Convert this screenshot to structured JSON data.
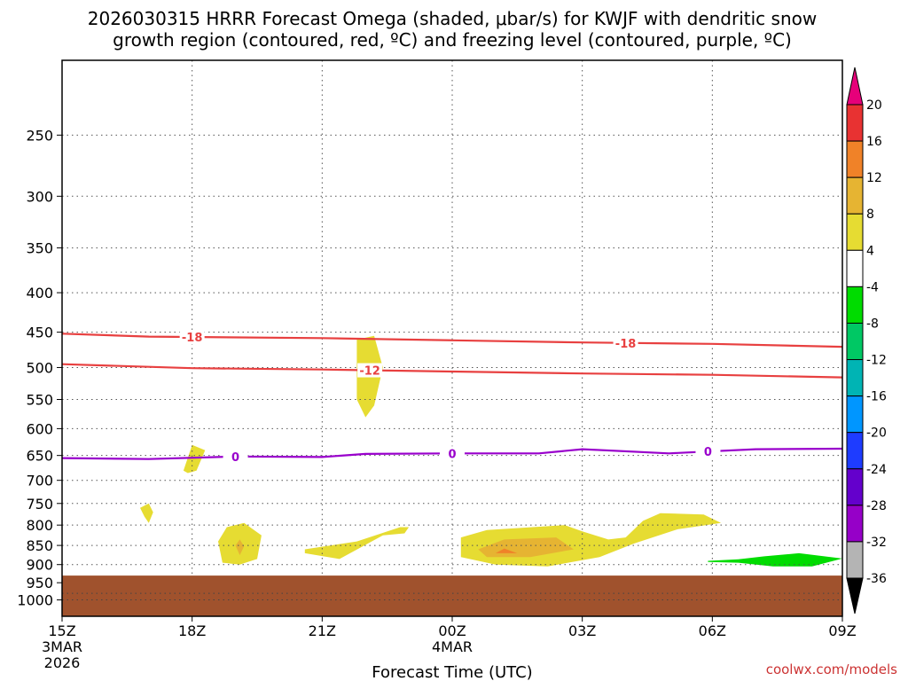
{
  "chart_data": {
    "type": "contour-time-height",
    "title_line1": "2026030315 HRRR Forecast Omega (shaded, μbar/s) for KWJF with dendritic snow",
    "title_line2": "growth region (contoured, red, ºC) and freezing level (contoured, purple, ºC)",
    "xlabel": "Forecast Time (UTC)",
    "credit": "coolwx.com/models",
    "x_range_hours": [
      0,
      18
    ],
    "x_ticks": [
      {
        "h": 0,
        "label": "15Z",
        "sub1": "3MAR",
        "sub2": "2026"
      },
      {
        "h": 3,
        "label": "18Z",
        "sub1": "",
        "sub2": ""
      },
      {
        "h": 6,
        "label": "21Z",
        "sub1": "",
        "sub2": ""
      },
      {
        "h": 9,
        "label": "00Z",
        "sub1": "4MAR",
        "sub2": ""
      },
      {
        "h": 12,
        "label": "03Z",
        "sub1": "",
        "sub2": ""
      },
      {
        "h": 15,
        "label": "06Z",
        "sub1": "",
        "sub2": ""
      },
      {
        "h": 18,
        "label": "09Z",
        "sub1": "",
        "sub2": ""
      }
    ],
    "y_range_hpa": [
      1050,
      200
    ],
    "y_ticks": [
      250,
      300,
      350,
      400,
      450,
      500,
      550,
      600,
      650,
      700,
      750,
      800,
      850,
      900,
      950,
      1000
    ],
    "ground_level_hpa": 930,
    "temperature_contours": [
      {
        "label": "-18",
        "color": "#e84040",
        "points": [
          [
            0,
            452
          ],
          [
            2,
            456
          ],
          [
            6,
            458
          ],
          [
            9,
            461
          ],
          [
            12,
            464
          ],
          [
            15,
            466
          ],
          [
            18,
            470
          ]
        ],
        "label_hours": [
          3,
          13
        ]
      },
      {
        "label": "-12",
        "color": "#e84040",
        "points": [
          [
            0,
            495
          ],
          [
            3,
            501
          ],
          [
            6,
            503
          ],
          [
            9,
            506
          ],
          [
            12,
            509
          ],
          [
            15,
            511
          ],
          [
            18,
            515
          ]
        ],
        "label_hours": [
          7.1
        ]
      },
      {
        "label": "0",
        "color": "#9900cc",
        "points": [
          [
            0,
            655
          ],
          [
            2,
            657
          ],
          [
            4,
            652
          ],
          [
            6,
            653
          ],
          [
            7,
            647
          ],
          [
            9,
            646
          ],
          [
            11,
            646
          ],
          [
            12,
            638
          ],
          [
            14,
            646
          ],
          [
            16,
            638
          ],
          [
            18,
            637
          ]
        ],
        "label_hours": [
          4,
          9,
          14.9
        ]
      }
    ],
    "omega_regions": [
      {
        "value": 5,
        "color": "#e6dc32",
        "points": [
          [
            6.8,
            460
          ],
          [
            7.2,
            455
          ],
          [
            7.4,
            500
          ],
          [
            7.2,
            560
          ],
          [
            7,
            580
          ],
          [
            6.8,
            550
          ],
          [
            6.8,
            500
          ]
        ]
      },
      {
        "value": 5,
        "color": "#e6dc32",
        "points": [
          [
            2.8,
            680
          ],
          [
            3,
            630
          ],
          [
            3.3,
            640
          ],
          [
            3.1,
            680
          ],
          [
            2.9,
            685
          ]
        ]
      },
      {
        "value": 5,
        "color": "#e6dc32",
        "points": [
          [
            1.8,
            760
          ],
          [
            2,
            750
          ],
          [
            2.1,
            770
          ],
          [
            2,
            795
          ],
          [
            1.9,
            780
          ]
        ]
      },
      {
        "value": 5,
        "color": "#e6dc32",
        "points": [
          [
            3.6,
            840
          ],
          [
            3.8,
            805
          ],
          [
            4.2,
            795
          ],
          [
            4.6,
            825
          ],
          [
            4.5,
            885
          ],
          [
            4.1,
            900
          ],
          [
            3.7,
            895
          ]
        ]
      },
      {
        "value": 5,
        "color": "#e6dc32",
        "points": [
          [
            5.6,
            860
          ],
          [
            6.8,
            840
          ],
          [
            7.8,
            805
          ],
          [
            8.0,
            805
          ],
          [
            7.9,
            820
          ],
          [
            7.4,
            825
          ],
          [
            6.4,
            885
          ],
          [
            5.6,
            870
          ]
        ]
      },
      {
        "value": 5,
        "color": "#e6dc32",
        "points": [
          [
            9.2,
            830
          ],
          [
            9.8,
            812
          ],
          [
            11.6,
            800
          ],
          [
            12.0,
            815
          ],
          [
            12.6,
            835
          ],
          [
            13.0,
            830
          ],
          [
            13.4,
            790
          ],
          [
            13.8,
            772
          ],
          [
            14.8,
            775
          ],
          [
            15.2,
            795
          ],
          [
            14.2,
            810
          ],
          [
            13.2,
            845
          ],
          [
            12.4,
            880
          ],
          [
            11.2,
            905
          ],
          [
            10.0,
            900
          ],
          [
            9.2,
            880
          ]
        ]
      },
      {
        "value": 9,
        "color": "#e6b432",
        "points": [
          [
            9.6,
            860
          ],
          [
            10.2,
            835
          ],
          [
            11.4,
            830
          ],
          [
            11.8,
            860
          ],
          [
            10.8,
            880
          ],
          [
            9.8,
            880
          ]
        ]
      },
      {
        "value": 9,
        "color": "#e6b432",
        "points": [
          [
            4.0,
            850
          ],
          [
            4.1,
            835
          ],
          [
            4.2,
            852
          ],
          [
            4.1,
            875
          ]
        ]
      },
      {
        "value": 13,
        "color": "#f08228",
        "points": [
          [
            10.0,
            870
          ],
          [
            10.2,
            858
          ],
          [
            10.5,
            870
          ]
        ]
      },
      {
        "value": -6,
        "color": "#00dc00",
        "points": [
          [
            14.9,
            890
          ],
          [
            15.6,
            886
          ],
          [
            16.2,
            878
          ],
          [
            17.0,
            870
          ],
          [
            18.0,
            884
          ],
          [
            17.3,
            905
          ],
          [
            16.4,
            905
          ],
          [
            15.6,
            895
          ],
          [
            14.9,
            893
          ]
        ]
      }
    ],
    "colorbar": {
      "top_color": "#e6007a",
      "bottom_color": "#000000",
      "bins": [
        {
          "color": "#e83232"
        },
        {
          "color": "#f08228"
        },
        {
          "color": "#e6b432"
        },
        {
          "color": "#e6dc32"
        },
        {
          "color": "#ffffff"
        },
        {
          "color": "#00dc00"
        },
        {
          "color": "#00c864"
        },
        {
          "color": "#00b4b4"
        },
        {
          "color": "#0096ff"
        },
        {
          "color": "#1e3cff"
        },
        {
          "color": "#6400cc"
        },
        {
          "color": "#9600c8"
        },
        {
          "color": "#b4b4b4"
        }
      ],
      "labels": [
        "20",
        "16",
        "12",
        "8",
        "4",
        "-4",
        "-8",
        "-12",
        "-16",
        "-20",
        "-24",
        "-28",
        "-32",
        "-36"
      ]
    },
    "colors": {
      "ground": "#a0522d",
      "grid": "#555555",
      "frame": "#000000"
    }
  }
}
